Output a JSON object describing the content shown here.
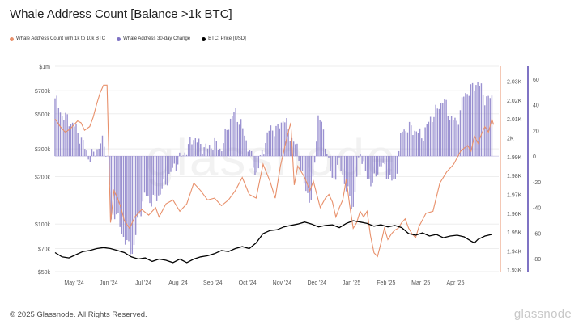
{
  "title": "Whale Address Count [Balance >1k BTC]",
  "watermark": "glassnode",
  "footer": "© 2025 Glassnode. All Rights Reserved.",
  "brand": "glassnode",
  "colors": {
    "whale": "#e8906b",
    "change": "#7f73c4",
    "price": "#000000",
    "grid": "#ececec"
  },
  "legend": [
    {
      "label": "Whale Address Count with 1k to 10k BTC",
      "color": "#e8906b"
    },
    {
      "label": "Whale Address 30-day Change",
      "color": "#7f73c4"
    },
    {
      "label": "BTC: Price [USD]",
      "color": "#000000"
    }
  ],
  "chart_data": {
    "type": "line",
    "title": "Whale Address Count [Balance >1k BTC]",
    "x_ticks": [
      "May '24",
      "Jun '24",
      "Jul '24",
      "Aug '24",
      "Sep '24",
      "Oct '24",
      "Nov '24",
      "Dec '24",
      "Jan '25",
      "Feb '25",
      "Mar '25",
      "Apr '25"
    ],
    "left_axis": {
      "scale": "log",
      "ticks": [
        "$1m",
        "$700k",
        "$500k",
        "$300k",
        "$200k",
        "$100k",
        "$70k",
        "$50k"
      ],
      "tick_values": [
        1000000,
        700000,
        500000,
        300000,
        200000,
        100000,
        70000,
        50000
      ],
      "ylim": [
        50000,
        1000000
      ]
    },
    "right_axis_count": {
      "ticks": [
        "2.03K",
        "2.02K",
        "2.01K",
        "2K",
        "1.99K",
        "1.98K",
        "1.97K",
        "1.96K",
        "1.95K",
        "1.94K",
        "1.93K"
      ],
      "tick_values": [
        2030,
        2020,
        2010,
        2000,
        1990,
        1980,
        1970,
        1960,
        1950,
        1940,
        1930
      ],
      "ylim": [
        1929,
        2038
      ]
    },
    "right_axis_change": {
      "ticks": [
        "60",
        "40",
        "20",
        "0",
        "-20",
        "-40",
        "-60",
        "-80"
      ],
      "tick_values": [
        60,
        40,
        20,
        0,
        -20,
        -40,
        -60,
        -80
      ],
      "ylim": [
        -90,
        70
      ]
    },
    "x_range": [
      0,
      12.8
    ],
    "series": [
      {
        "name": "Whale Address Count with 1k to 10k BTC",
        "axis": "count",
        "color": "#e8906b",
        "x": [
          0.0,
          0.15,
          0.3,
          0.45,
          0.55,
          0.65,
          0.75,
          0.85,
          1.0,
          1.1,
          1.2,
          1.3,
          1.4,
          1.5,
          1.6,
          1.7,
          1.8,
          1.9,
          2.0,
          2.15,
          2.3,
          2.5,
          2.7,
          2.9,
          3.0,
          3.2,
          3.4,
          3.6,
          3.8,
          4.0,
          4.2,
          4.4,
          4.6,
          4.8,
          5.0,
          5.2,
          5.4,
          5.6,
          5.8,
          6.0,
          6.2,
          6.35,
          6.5,
          6.6,
          6.7,
          6.8,
          6.9,
          7.0,
          7.2,
          7.35,
          7.45,
          7.55,
          7.65,
          7.8,
          7.9,
          8.0,
          8.1,
          8.2,
          8.3,
          8.4,
          8.5,
          8.6,
          8.7,
          8.8,
          8.9,
          9.0,
          9.1,
          9.2,
          9.3,
          9.4,
          9.5,
          9.6,
          9.7,
          9.8,
          9.9,
          10.0,
          10.1,
          10.2,
          10.3,
          10.4,
          10.5,
          10.7,
          10.9,
          11.1,
          11.3,
          11.5,
          11.7,
          11.9,
          12.0,
          12.1,
          12.2,
          12.3,
          12.4,
          12.5,
          12.6,
          12.65
        ],
        "values": [
          2010,
          2006,
          2003,
          2005,
          2007,
          2009,
          2008,
          2004,
          2006,
          2011,
          2018,
          2024,
          2028,
          2028,
          1955,
          1972,
          1968,
          1963,
          1956,
          1952,
          1958,
          1962,
          1959,
          1963,
          1958,
          1965,
          1967,
          1961,
          1965,
          1976,
          1972,
          1967,
          1968,
          1964,
          1967,
          1972,
          1979,
          1970,
          1968,
          1986,
          1977,
          1968,
          1985,
          1993,
          2001,
          2008,
          1975,
          1985,
          1979,
          1972,
          1977,
          1970,
          1963,
          1968,
          1970,
          1966,
          1958,
          1963,
          1967,
          1978,
          1964,
          1952,
          1955,
          1961,
          1958,
          1961,
          1948,
          1939,
          1937,
          1944,
          1952,
          1946,
          1949,
          1951,
          1952,
          1955,
          1957,
          1952,
          1949,
          1947,
          1953,
          1960,
          1961,
          1976,
          1982,
          1986,
          1993,
          1996,
          1993,
          2001,
          1997,
          2002,
          2006,
          2003,
          2010,
          2007
        ]
      },
      {
        "name": "Whale Address 30-day Change",
        "axis": "change",
        "color": "#7f73c4",
        "x": [
          0.0,
          0.2,
          0.4,
          0.6,
          0.8,
          1.0,
          1.2,
          1.4,
          1.55,
          1.6,
          1.75,
          1.9,
          2.1,
          2.25,
          2.4,
          2.6,
          2.8,
          3.0,
          3.2,
          3.4,
          3.6,
          3.8,
          4.0,
          4.2,
          4.4,
          4.6,
          4.8,
          5.0,
          5.2,
          5.4,
          5.6,
          5.8,
          6.0,
          6.2,
          6.4,
          6.6,
          6.8,
          7.0,
          7.2,
          7.4,
          7.6,
          7.8,
          8.0,
          8.2,
          8.4,
          8.6,
          8.8,
          9.0,
          9.2,
          9.4,
          9.6,
          9.8,
          10.0,
          10.2,
          10.4,
          10.6,
          10.8,
          11.0,
          11.2,
          11.4,
          11.6,
          11.8,
          12.0,
          12.2,
          12.4,
          12.6
        ],
        "values": [
          45,
          32,
          28,
          22,
          10,
          -2,
          5,
          12,
          -6,
          -52,
          -42,
          -58,
          -70,
          -75,
          -48,
          -30,
          -36,
          -30,
          -20,
          -10,
          -2,
          5,
          15,
          8,
          6,
          10,
          5,
          25,
          35,
          22,
          5,
          -15,
          5,
          22,
          20,
          30,
          15,
          5,
          -25,
          -35,
          35,
          10,
          -20,
          -5,
          -25,
          -40,
          5,
          -18,
          -20,
          -5,
          -15,
          -22,
          20,
          22,
          20,
          15,
          28,
          35,
          45,
          30,
          26,
          48,
          52,
          58,
          45,
          45
        ]
      },
      {
        "name": "BTC: Price [USD]",
        "axis": "price",
        "color": "#000000",
        "x": [
          0.0,
          0.2,
          0.4,
          0.6,
          0.8,
          1.0,
          1.2,
          1.4,
          1.6,
          1.8,
          2.0,
          2.2,
          2.4,
          2.6,
          2.8,
          3.0,
          3.2,
          3.4,
          3.6,
          3.8,
          4.0,
          4.2,
          4.4,
          4.6,
          4.8,
          5.0,
          5.2,
          5.4,
          5.6,
          5.8,
          6.0,
          6.2,
          6.4,
          6.6,
          6.8,
          7.0,
          7.2,
          7.4,
          7.6,
          7.8,
          8.0,
          8.2,
          8.4,
          8.6,
          8.8,
          9.0,
          9.2,
          9.4,
          9.6,
          9.8,
          10.0,
          10.2,
          10.4,
          10.6,
          10.8,
          11.0,
          11.2,
          11.4,
          11.6,
          11.8,
          12.0,
          12.1,
          12.2,
          12.4,
          12.6
        ],
        "values": [
          66000,
          62000,
          61000,
          64000,
          67000,
          68000,
          70000,
          71000,
          70000,
          68000,
          66000,
          62000,
          60000,
          61000,
          58000,
          60000,
          59000,
          57000,
          60000,
          57000,
          60000,
          62000,
          63000,
          65000,
          68000,
          67000,
          70000,
          72000,
          70000,
          76000,
          87000,
          91000,
          92000,
          96000,
          98000,
          100000,
          103000,
          100000,
          96000,
          98000,
          99000,
          95000,
          101000,
          105000,
          103000,
          101000,
          97000,
          99000,
          96000,
          98000,
          95000,
          87000,
          85000,
          88000,
          84000,
          86000,
          82000,
          84000,
          85000,
          83000,
          78000,
          76000,
          80000,
          84000,
          86000
        ]
      }
    ],
    "legend_position": "top-left"
  }
}
